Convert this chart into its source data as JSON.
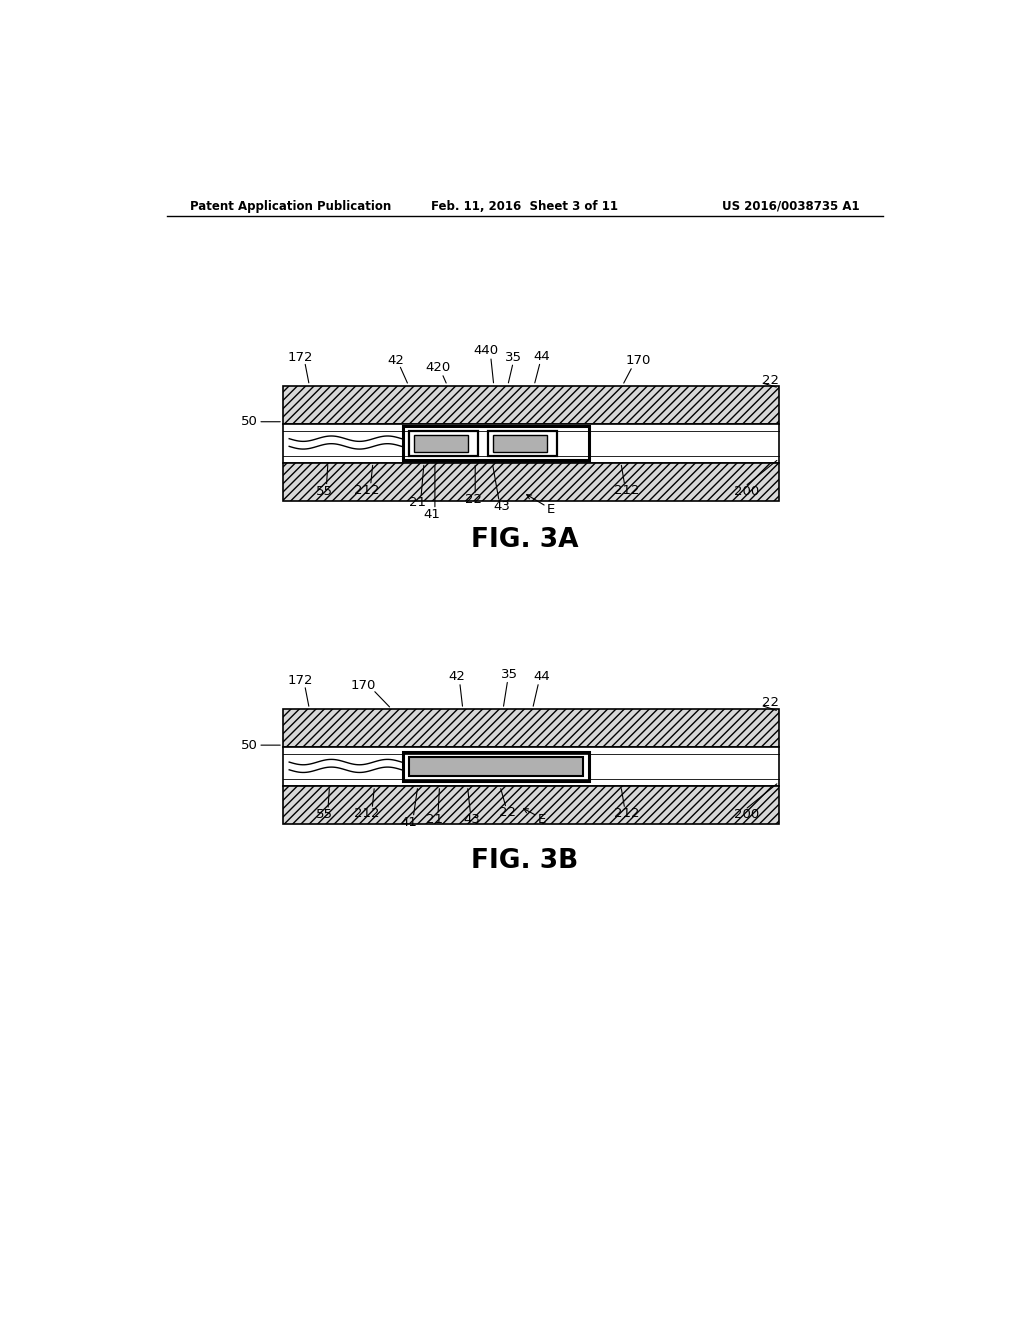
{
  "background_color": "#ffffff",
  "header_left": "Patent Application Publication",
  "header_center": "Feb. 11, 2016  Sheet 3 of 11",
  "header_right": "US 2016/0038735 A1",
  "fig3a_label": "FIG. 3A",
  "fig3b_label": "FIG. 3B",
  "hatch_color": "#555555",
  "hatch_pattern": "////",
  "line_color": "#000000",
  "text_color": "#000000"
}
